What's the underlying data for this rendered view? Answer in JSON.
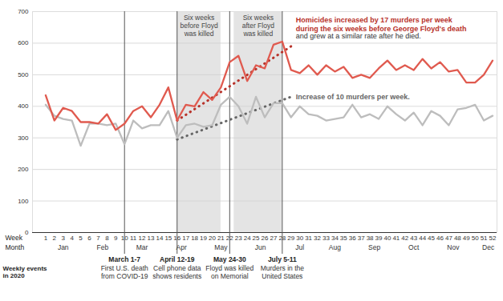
{
  "chart_data": {
    "type": "line",
    "x": [
      1,
      2,
      3,
      4,
      5,
      6,
      7,
      8,
      9,
      10,
      11,
      12,
      13,
      14,
      15,
      16,
      17,
      18,
      19,
      20,
      21,
      22,
      23,
      24,
      25,
      26,
      27,
      28,
      29,
      30,
      31,
      32,
      33,
      34,
      35,
      36,
      37,
      38,
      39,
      40,
      41,
      42,
      43,
      44,
      45,
      46,
      47,
      48,
      49,
      50,
      51,
      52
    ],
    "series": [
      {
        "color": "#bdbdbd",
        "values": [
          405,
          370,
          360,
          355,
          275,
          345,
          345,
          340,
          345,
          280,
          355,
          330,
          340,
          340,
          385,
          300,
          340,
          345,
          335,
          340,
          405,
          430,
          400,
          345,
          430,
          365,
          410,
          410,
          365,
          400,
          375,
          370,
          355,
          360,
          365,
          405,
          365,
          375,
          360,
          400,
          375,
          355,
          380,
          340,
          385,
          370,
          340,
          390,
          395,
          405,
          355,
          370
        ]
      },
      {
        "color": "#e05a4f",
        "values": [
          435,
          355,
          395,
          385,
          350,
          350,
          345,
          375,
          325,
          345,
          385,
          400,
          365,
          405,
          460,
          355,
          405,
          400,
          445,
          420,
          460,
          540,
          560,
          480,
          530,
          520,
          595,
          605,
          515,
          505,
          530,
          500,
          530,
          510,
          525,
          490,
          500,
          490,
          520,
          545,
          515,
          530,
          515,
          550,
          520,
          540,
          510,
          515,
          475,
          475,
          500,
          545
        ]
      }
    ],
    "xlim": [
      -0.5,
      52.5
    ],
    "xticks": [
      1,
      2,
      3,
      4,
      5,
      6,
      7,
      8,
      9,
      10,
      11,
      12,
      13,
      14,
      15,
      16,
      17,
      18,
      19,
      20,
      21,
      22,
      23,
      24,
      25,
      26,
      27,
      28,
      29,
      30,
      31,
      32,
      33,
      34,
      35,
      36,
      37,
      38,
      39,
      40,
      41,
      42,
      43,
      44,
      45,
      46,
      47,
      48,
      49,
      50,
      51,
      52
    ],
    "ylim": [
      0,
      700
    ],
    "yticks": [
      0,
      100,
      200,
      300,
      400,
      500,
      600,
      700
    ],
    "grid": true,
    "trends": [
      {
        "color": "#b8322a",
        "line_style": "dotted",
        "x": [
          16,
          29
        ],
        "values": [
          355,
          590
        ],
        "label": [
          "Homicides increased by 17 murders per week",
          "during the six weeks before George Floyd's death"
        ],
        "note": "and grew at a similar rate after he died."
      },
      {
        "color": "#666666",
        "line_style": "dotted",
        "x": [
          16,
          29
        ],
        "values": [
          295,
          430
        ],
        "label": [
          "Increase of 10 murders per week."
        ]
      }
    ],
    "shades": [
      {
        "x1": 16,
        "x2": 21,
        "label": "Six weeks\nbefore Floyd\nwas killed"
      },
      {
        "x1": 22.5,
        "x2": 28,
        "label": "Six weeks\nafter Floyd\nwas killed"
      }
    ],
    "months": [
      {
        "x": 3,
        "label": "Jan"
      },
      {
        "x": 7.5,
        "label": "Feb"
      },
      {
        "x": 12,
        "label": "Mar"
      },
      {
        "x": 16.5,
        "label": "Apr"
      },
      {
        "x": 21,
        "label": "May"
      },
      {
        "x": 25.5,
        "label": "Jun"
      },
      {
        "x": 30,
        "label": "Jul"
      },
      {
        "x": 34,
        "label": "Aug"
      },
      {
        "x": 38.5,
        "label": "Sep"
      },
      {
        "x": 43,
        "label": "Oct"
      },
      {
        "x": 47.5,
        "label": "Nov"
      },
      {
        "x": 51.5,
        "label": "Dec"
      }
    ],
    "events": [
      {
        "x": 10,
        "date": "March 1-7",
        "text": "First U.S. death\nfrom COVID-19"
      },
      {
        "x": 16,
        "date": "April 12-19",
        "text": "Cell phone data\nshows residents"
      },
      {
        "x": 22,
        "date": "May 24-30",
        "text": "Floyd was killed\non Memorial"
      },
      {
        "x": 28,
        "date": "July 5-11",
        "text": "Murders in the\nUnited States"
      }
    ],
    "row_labels": {
      "week": "Week",
      "month": "Month",
      "events": "Weekly events\nin 2020"
    }
  }
}
